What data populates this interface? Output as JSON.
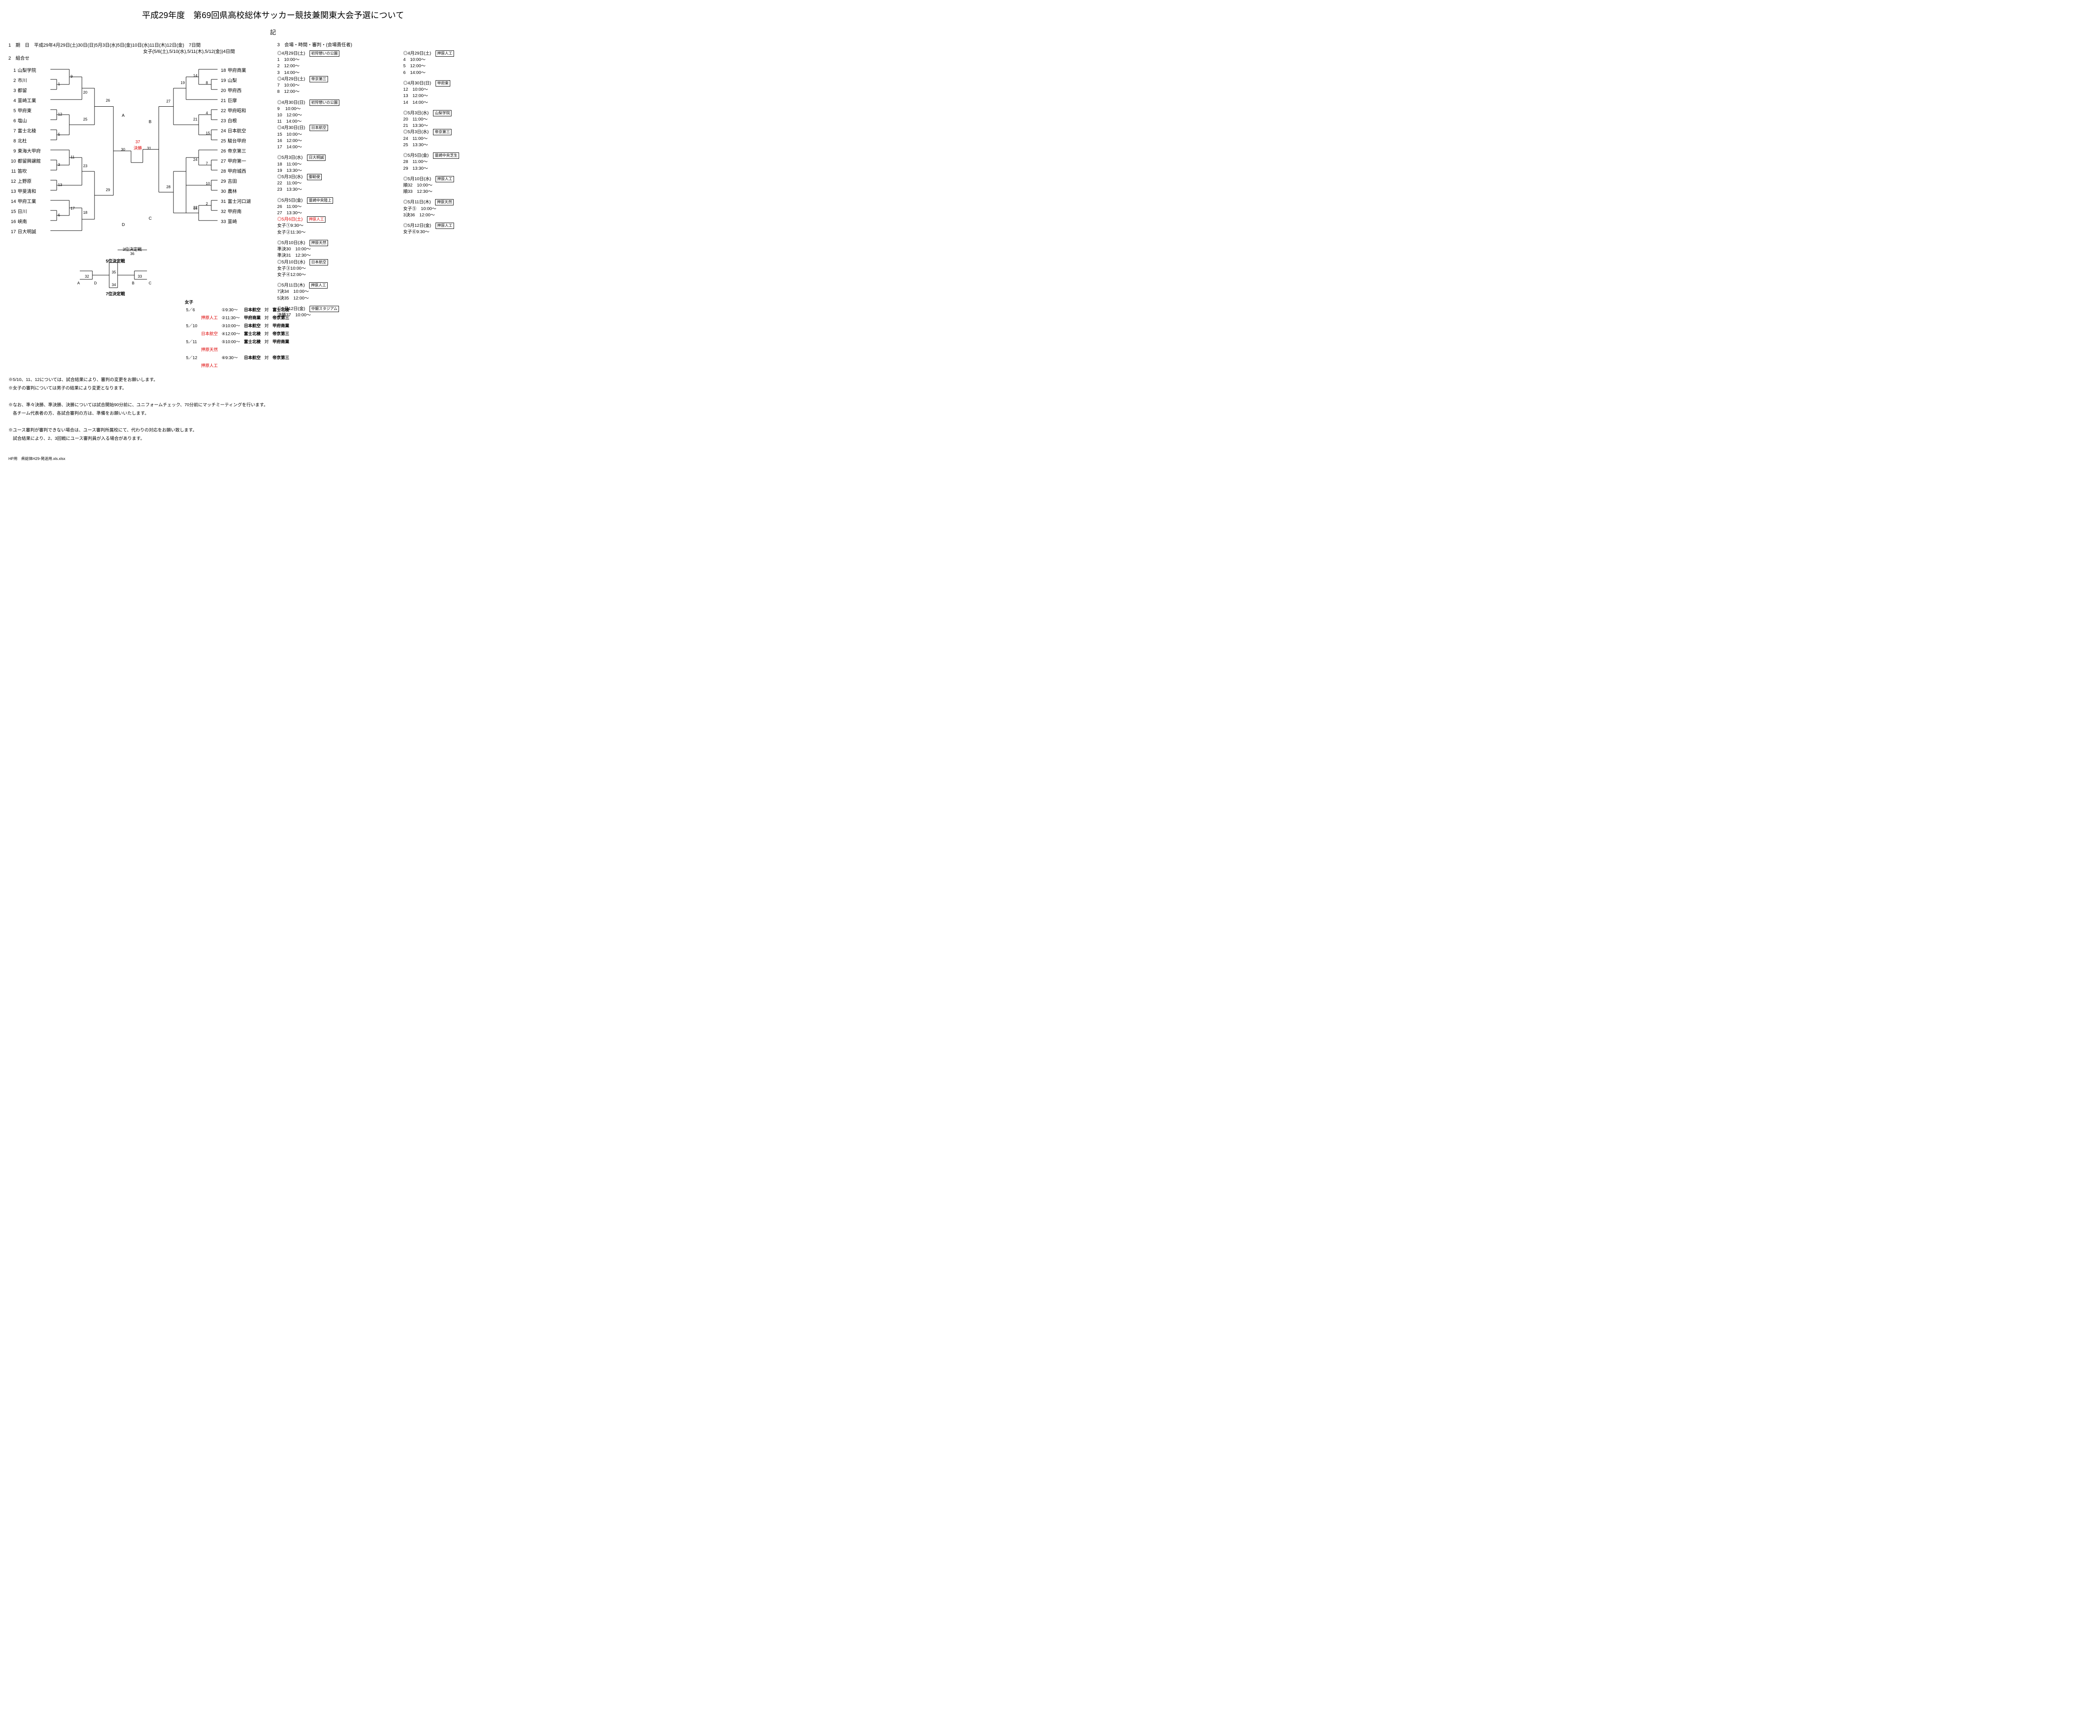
{
  "title": "平成29年度　第69回県高校総体サッカー競技兼関東大会予選について",
  "ki": "記",
  "header": {
    "line1": "1　期　日　平成29年4月29日(土)30日(日)5月3日(水)5日(金)10日(水)11日(木)12日(金)　7日間",
    "line2": "女子(5/6(土),5/10(水),5/11(木),5/12(金))4日間",
    "line3": "2　組合せ"
  },
  "hdr3": "3　会場・時間・審判・(会場責任者)",
  "teams_left": [
    {
      "n": "1",
      "name": "山梨学院"
    },
    {
      "n": "2",
      "name": "市川"
    },
    {
      "n": "3",
      "name": "都留"
    },
    {
      "n": "4",
      "name": "韮崎工業"
    },
    {
      "n": "5",
      "name": "甲府東"
    },
    {
      "n": "6",
      "name": "塩山"
    },
    {
      "n": "7",
      "name": "富士北稜"
    },
    {
      "n": "8",
      "name": "北杜"
    },
    {
      "n": "9",
      "name": "東海大甲府"
    },
    {
      "n": "10",
      "name": "都留興譲館"
    },
    {
      "n": "11",
      "name": "笛吹"
    },
    {
      "n": "12",
      "name": "上野原"
    },
    {
      "n": "13",
      "name": "甲斐清和"
    },
    {
      "n": "14",
      "name": "甲府工業"
    },
    {
      "n": "15",
      "name": "日川"
    },
    {
      "n": "16",
      "name": "峡南"
    },
    {
      "n": "17",
      "name": "日大明誠"
    }
  ],
  "teams_right": [
    {
      "n": "18",
      "name": "甲府商業"
    },
    {
      "n": "19",
      "name": "山梨"
    },
    {
      "n": "20",
      "name": "甲府西"
    },
    {
      "n": "21",
      "name": "巨摩"
    },
    {
      "n": "22",
      "name": "甲府昭和"
    },
    {
      "n": "23",
      "name": "白根"
    },
    {
      "n": "24",
      "name": "日本航空"
    },
    {
      "n": "25",
      "name": "駿台甲府"
    },
    {
      "n": "26",
      "name": "帝京第三"
    },
    {
      "n": "27",
      "name": "甲府第一"
    },
    {
      "n": "28",
      "name": "甲府城西"
    },
    {
      "n": "29",
      "name": "吉田"
    },
    {
      "n": "30",
      "name": "農林"
    },
    {
      "n": "31",
      "name": "富士河口湖"
    },
    {
      "n": "32",
      "name": "甲府南"
    },
    {
      "n": "33",
      "name": "韮崎"
    }
  ],
  "match_labels": {
    "m1": "1",
    "m9": "9",
    "m12": "12",
    "m20": "20",
    "m25": "25",
    "m26": "26",
    "m5": "5",
    "m3": "3",
    "m11": "11",
    "m13": "13",
    "m23": "23",
    "m29": "29",
    "m6": "6",
    "m17": "17",
    "m18": "18",
    "m30": "30",
    "m8": "8",
    "m14": "14",
    "m19": "19",
    "m4": "4",
    "m21": "21",
    "m15": "15",
    "m27": "27",
    "m7": "7",
    "m24": "24",
    "m10": "10",
    "m28": "28",
    "m16": "16",
    "m2": "2",
    "m22": "22",
    "m31": "31",
    "m37": "37",
    "kessho": "決勝",
    "A": "A",
    "B": "B",
    "C": "C",
    "D": "D",
    "p5": "5位決定戦",
    "p3": "3位決定戦",
    "p7": "7位決定戦",
    "m32": "32",
    "m33": "33",
    "m34": "34",
    "m35": "35",
    "m36": "36",
    "lA": "A",
    "lD": "D",
    "lB": "B",
    "lC": "C"
  },
  "women": {
    "title": "女子",
    "rows": [
      {
        "d": "5／6",
        "loc": "",
        "n": "①9:30～",
        "a": "日本航空",
        "vs": "対",
        "b": "富士北稜"
      },
      {
        "d": "",
        "loc": "押原人工",
        "n": "②11:30～",
        "a": "甲府商業",
        "vs": "対",
        "b": "帝京第三"
      },
      {
        "d": "5／10",
        "loc": "",
        "n": "③10:00～",
        "a": "日本航空",
        "vs": "対",
        "b": "甲府商業"
      },
      {
        "d": "",
        "loc": "日本航空",
        "n": "④12:00～",
        "a": "富士北稜",
        "vs": "対",
        "b": "帝京第三"
      },
      {
        "d": "5／11",
        "loc": "",
        "n": "⑤10:00～",
        "a": "富士北稜",
        "vs": "対",
        "b": "甲府商業"
      },
      {
        "d": "",
        "loc": "押原天然",
        "n": "",
        "a": "",
        "vs": "",
        "b": ""
      },
      {
        "d": "5／12",
        "loc": "",
        "n": "⑥9:30～",
        "a": "日本航空",
        "vs": "対",
        "b": "帝京第三"
      },
      {
        "d": "",
        "loc": "押原人工",
        "n": "",
        "a": "",
        "vs": "",
        "b": ""
      }
    ]
  },
  "sched_left": [
    {
      "lines": [
        "◎4月29日(土)　[初狩憩いの公園]",
        "1　10:00～",
        "2　12:00～",
        "3　14:00～",
        "◎4月29日(土)　[帝京第三]",
        "7　10:00～",
        "8　12:00～"
      ]
    },
    {
      "lines": [
        "◎4月30日(日)　[初狩憩いの公園]",
        "9 　10:00～",
        "10　12:00～",
        "11　14:00～",
        "◎4月30日(日)　[日本航空]",
        "15　10:00～",
        "16　12:00～",
        "17　14:00～"
      ]
    },
    {
      "lines": [
        "◎5月3日(水)　[日大明誠]",
        "18　11:00～",
        "19　13:30～",
        "◎5月3日(水)　[御勅使]",
        "22　11:00～",
        "23　13:30～"
      ]
    },
    {
      "lines": [
        "◎5月5日(金)　[韮崎中央陸上]",
        "26　11:00～",
        "27　13:30～",
        "◎5月6日(土)　[押原人工]|RED",
        "女子①9:30～",
        "女子②11:30～"
      ]
    },
    {
      "lines": [
        "◎5月10日(水)　[押原天然]",
        "準決30　10:00～",
        "準決31　12:30～",
        "◎5月10日(水)　[日本航空]",
        "女子③10:00～",
        "女子④12:00～"
      ]
    },
    {
      "lines": [
        "◎5月11日(木)　[押原人工]",
        "7決34　10:00～",
        "5決35　12:00～"
      ]
    },
    {
      "lines": [
        "◎5月12日(金)　[中銀スタジアム]",
        "決勝37　10:00～"
      ]
    }
  ],
  "sched_right": [
    {
      "lines": [
        "◎4月29日(土)　[押原人工]",
        "4　10:00～",
        "5　12:00～",
        "6　14:00～"
      ]
    },
    {
      "lines": [
        "◎4月30日(日)　[甲府東]",
        "12　10:00～",
        "13　12:00～",
        "14　14:00～"
      ]
    },
    {
      "lines": [
        "◎5月3日(水)　[山梨学院]",
        "20　11:00～",
        "21　13:30～",
        "◎5月3日(水)　[帝京第三]",
        "24　11:00～",
        "25　13:30～"
      ]
    },
    {
      "lines": [
        "◎5月5日(金)　[韮崎中央芝生]",
        "28　11:00～",
        "29　13:30～"
      ]
    },
    {
      "lines": [
        "◎5月10日(水)　[押原人工]",
        "順32　10:00～",
        "順33　12:30～"
      ]
    },
    {
      "lines": [
        "◎5月11日(木)　[押原天然]",
        "女子⑤　10:00～",
        "3決36　12:00～"
      ]
    },
    {
      "lines": [
        "◎5月12日(金)　[押原人工]",
        "女子⑥9:30～"
      ]
    }
  ],
  "notes": [
    "※5/10、11、12については、試合結果により、審判の変更をお願いします。",
    "※女子の審判については男子の結果により変更となります。",
    "",
    "※なお、準々決勝、準決勝、決勝については試合開始90分前に、ユニフォームチェック、70分前にマッチミーティングを行います。",
    "　各チーム代表者の方、各試合審判の方は、準備をお願いいたします。",
    "",
    "※ユース審判が審判できない場合は、ユース審判所属校にて、代わりの対応をお願い致します。",
    "　試合結果により、2、3回戦にユース審判員が入る場合があります。"
  ],
  "footer": "HP用　県総体H29-発送用.xls.xlsx"
}
